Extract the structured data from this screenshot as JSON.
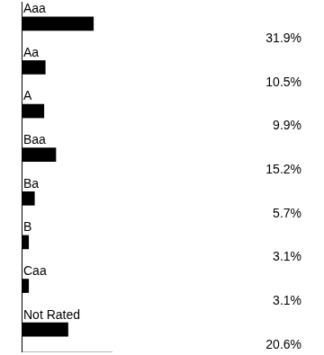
{
  "chart_data": {
    "type": "bar",
    "orientation": "horizontal",
    "categories": [
      "Aaa",
      "Aa",
      "A",
      "Baa",
      "Ba",
      "B",
      "Caa",
      "Not Rated"
    ],
    "values": [
      31.9,
      10.5,
      9.9,
      15.2,
      5.7,
      3.1,
      3.1,
      20.6
    ],
    "value_labels": [
      "31.9%",
      "10.5%",
      "9.9%",
      "15.2%",
      "5.7%",
      "3.1%",
      "3.1%",
      "20.6%"
    ],
    "data_labels": true,
    "color": "#000000",
    "xlim": [
      0,
      40
    ],
    "tick_labels": false,
    "grid": false
  }
}
